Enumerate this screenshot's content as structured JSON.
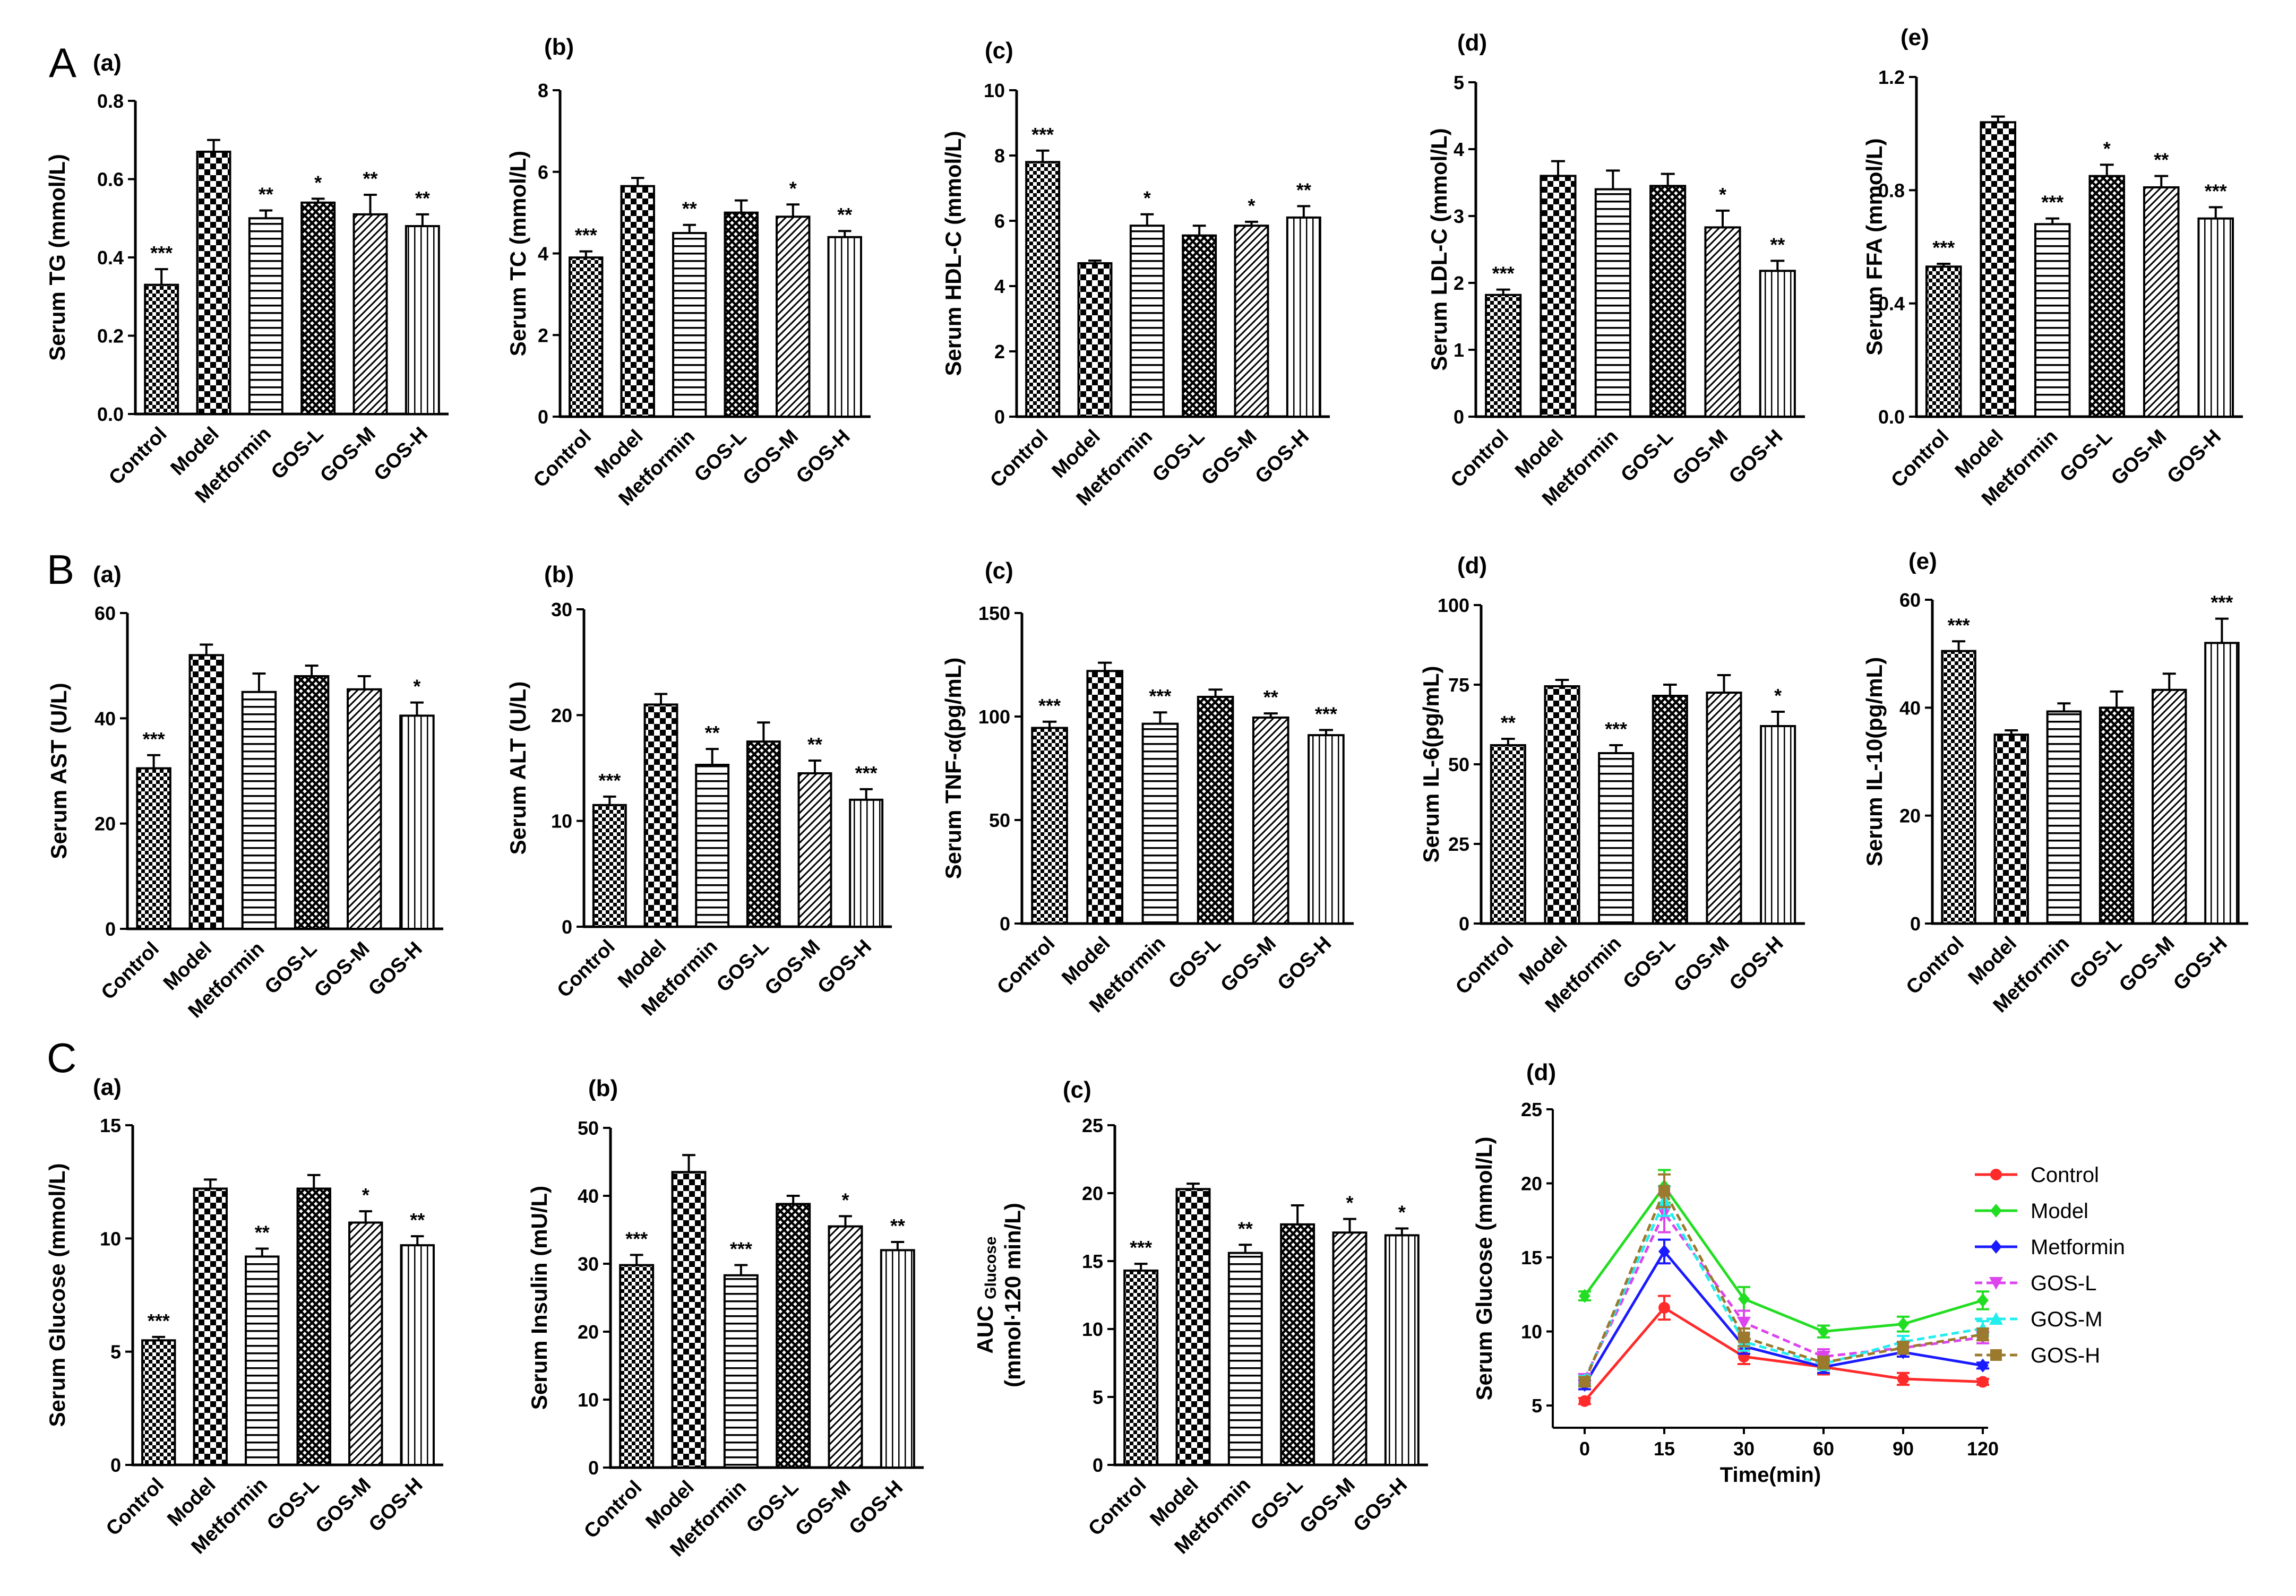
{
  "figure_panels": {
    "A": "A",
    "B": "B",
    "C": "C"
  },
  "group_labels": [
    "Control",
    "Model",
    "Metformin",
    "GOS-L",
    "GOS-M",
    "GOS-H"
  ],
  "patterns": [
    "checker-small",
    "checker-large",
    "horizontal",
    "diamond",
    "diagonal",
    "vertical"
  ],
  "colors": {
    "bar_fill": "#ffffff",
    "ink": "#000000",
    "control": "#ff2a2a",
    "model": "#22dd22",
    "metformin": "#1a1aff",
    "gos_l": "#dd44ee",
    "gos_m": "#22eeee",
    "gos_h": "#9b7a2e"
  },
  "chart_data": [
    {
      "id": "A-a",
      "type": "bar",
      "sub_label": "(a)",
      "ylabel": "Serum TG (mmol/L)",
      "ylim": [
        0,
        0.8
      ],
      "ticks": [
        "0.0",
        "0.2",
        "0.4",
        "0.6",
        "0.8"
      ],
      "tick_values": [
        0,
        0.2,
        0.4,
        0.6,
        0.8
      ],
      "categories": [
        "Control",
        "Model",
        "Metformin",
        "GOS-L",
        "GOS-M",
        "GOS-H"
      ],
      "values": [
        0.33,
        0.67,
        0.5,
        0.54,
        0.51,
        0.48
      ],
      "errors": [
        0.04,
        0.03,
        0.02,
        0.01,
        0.05,
        0.03
      ],
      "significance": [
        "***",
        "",
        "**",
        "*",
        "**",
        "**"
      ]
    },
    {
      "id": "A-b",
      "type": "bar",
      "sub_label": "(b)",
      "ylabel": "Serum TC (mmol/L)",
      "ylim": [
        0,
        8
      ],
      "ticks": [
        "0",
        "2",
        "4",
        "6",
        "8"
      ],
      "tick_values": [
        0,
        2,
        4,
        6,
        8
      ],
      "categories": [
        "Control",
        "Model",
        "Metformin",
        "GOS-L",
        "GOS-M",
        "GOS-H"
      ],
      "values": [
        3.9,
        5.65,
        4.5,
        5.0,
        4.9,
        4.4
      ],
      "errors": [
        0.15,
        0.2,
        0.2,
        0.3,
        0.3,
        0.15
      ],
      "significance": [
        "***",
        "",
        "**",
        "",
        "*",
        "**"
      ]
    },
    {
      "id": "A-c",
      "type": "bar",
      "sub_label": "(c)",
      "ylabel": "Serum HDL-C (mmol/L)",
      "ylim": [
        0,
        10
      ],
      "ticks": [
        "0",
        "2",
        "4",
        "6",
        "8",
        "10"
      ],
      "tick_values": [
        0,
        2,
        4,
        6,
        8,
        10
      ],
      "categories": [
        "Control",
        "Model",
        "Metformin",
        "GOS-L",
        "GOS-M",
        "GOS-H"
      ],
      "values": [
        7.8,
        4.7,
        5.85,
        5.55,
        5.85,
        6.1
      ],
      "errors": [
        0.35,
        0.08,
        0.35,
        0.3,
        0.12,
        0.35
      ],
      "significance": [
        "***",
        "",
        "*",
        "",
        "*",
        "**"
      ]
    },
    {
      "id": "A-d",
      "type": "bar",
      "sub_label": "(d)",
      "ylabel": "Serum LDL-C (mmol/L)",
      "ylim": [
        0,
        5
      ],
      "ticks": [
        "0",
        "1",
        "2",
        "3",
        "4",
        "5"
      ],
      "tick_values": [
        0,
        1,
        2,
        3,
        4,
        5
      ],
      "categories": [
        "Control",
        "Model",
        "Metformin",
        "GOS-L",
        "GOS-M",
        "GOS-H"
      ],
      "values": [
        1.82,
        3.6,
        3.4,
        3.45,
        2.83,
        2.18
      ],
      "errors": [
        0.08,
        0.22,
        0.28,
        0.18,
        0.25,
        0.15
      ],
      "significance": [
        "***",
        "",
        "",
        "",
        "*",
        "**"
      ]
    },
    {
      "id": "A-e",
      "type": "bar",
      "sub_label": "(e)",
      "ylabel": "Serum FFA (mmol/L)",
      "ylim": [
        0,
        1.2
      ],
      "ticks": [
        "0.0",
        "0.4",
        "0.8",
        "1.2"
      ],
      "tick_values": [
        0,
        0.4,
        0.8,
        1.2
      ],
      "categories": [
        "Control",
        "Model",
        "Metformin",
        "GOS-L",
        "GOS-M",
        "GOS-H"
      ],
      "values": [
        0.53,
        1.04,
        0.68,
        0.85,
        0.81,
        0.7
      ],
      "errors": [
        0.01,
        0.02,
        0.02,
        0.04,
        0.04,
        0.04
      ],
      "significance": [
        "***",
        "",
        "***",
        "*",
        "**",
        "***"
      ]
    },
    {
      "id": "B-a",
      "type": "bar",
      "sub_label": "(a)",
      "ylabel": "Serum AST (U/L)",
      "ylim": [
        0,
        60
      ],
      "ticks": [
        "0",
        "20",
        "40",
        "60"
      ],
      "tick_values": [
        0,
        20,
        40,
        60
      ],
      "categories": [
        "Control",
        "Model",
        "Metformin",
        "GOS-L",
        "GOS-M",
        "GOS-H"
      ],
      "values": [
        30.5,
        52,
        45,
        48,
        45.5,
        40.5
      ],
      "errors": [
        2.5,
        2,
        3.5,
        2,
        2.5,
        2.5
      ],
      "significance": [
        "***",
        "",
        "",
        "",
        "",
        "*"
      ]
    },
    {
      "id": "B-b",
      "type": "bar",
      "sub_label": "(b)",
      "ylabel": "Serum ALT (U/L)",
      "ylim": [
        0,
        30
      ],
      "ticks": [
        "0",
        "10",
        "20",
        "30"
      ],
      "tick_values": [
        0,
        10,
        20,
        30
      ],
      "categories": [
        "Control",
        "Model",
        "Metformin",
        "GOS-L",
        "GOS-M",
        "GOS-H"
      ],
      "values": [
        11.5,
        21,
        15.3,
        17.5,
        14.5,
        12
      ],
      "errors": [
        0.8,
        1,
        1.5,
        1.8,
        1.2,
        1
      ],
      "significance": [
        "***",
        "",
        "**",
        "",
        "**",
        "***"
      ]
    },
    {
      "id": "B-c",
      "type": "bar",
      "sub_label": "(c)",
      "ylabel": "Serum TNF-α(pg/mL)",
      "ylim": [
        0,
        150
      ],
      "ticks": [
        "0",
        "50",
        "100",
        "150"
      ],
      "tick_values": [
        0,
        50,
        100,
        150
      ],
      "categories": [
        "Control",
        "Model",
        "Metformin",
        "GOS-L",
        "GOS-M",
        "GOS-H"
      ],
      "values": [
        94.5,
        122,
        96.5,
        109.5,
        99.5,
        91
      ],
      "errors": [
        3,
        4,
        5.5,
        3.5,
        2,
        2.5
      ],
      "significance": [
        "***",
        "",
        "***",
        "",
        "**",
        "***"
      ]
    },
    {
      "id": "B-d",
      "type": "bar",
      "sub_label": "(d)",
      "ylabel": "Serum IL-6(pg/mL)",
      "ylim": [
        0,
        100
      ],
      "ticks": [
        "0",
        "25",
        "50",
        "75",
        "100"
      ],
      "tick_values": [
        0,
        25,
        50,
        75,
        100
      ],
      "categories": [
        "Control",
        "Model",
        "Metformin",
        "GOS-L",
        "GOS-M",
        "GOS-H"
      ],
      "values": [
        56,
        74.5,
        53.5,
        71.5,
        72.5,
        62
      ],
      "errors": [
        2,
        2,
        2.5,
        3.5,
        5.5,
        4.5
      ],
      "significance": [
        "**",
        "",
        "***",
        "",
        "",
        "*"
      ]
    },
    {
      "id": "B-e",
      "type": "bar",
      "sub_label": "(e)",
      "ylabel": "Serum IL-10(pg/mL)",
      "ylim": [
        0,
        60
      ],
      "ticks": [
        "0",
        "20",
        "40",
        "60"
      ],
      "tick_values": [
        0,
        20,
        40,
        60
      ],
      "categories": [
        "Control",
        "Model",
        "Metformin",
        "GOS-L",
        "GOS-M",
        "GOS-H"
      ],
      "values": [
        50.5,
        35,
        39.3,
        40,
        43.3,
        52
      ],
      "errors": [
        1.8,
        0.8,
        1.5,
        3,
        3,
        4.5
      ],
      "significance": [
        "***",
        "",
        "",
        "",
        "",
        "***"
      ]
    },
    {
      "id": "C-a",
      "type": "bar",
      "sub_label": "(a)",
      "ylabel": "Serum Glucose (mmol/L)",
      "ylim": [
        0,
        15
      ],
      "ticks": [
        "0",
        "5",
        "10",
        "15"
      ],
      "tick_values": [
        0,
        5,
        10,
        15
      ],
      "categories": [
        "Control",
        "Model",
        "Metformin",
        "GOS-L",
        "GOS-M",
        "GOS-H"
      ],
      "values": [
        5.5,
        12.2,
        9.2,
        12.2,
        10.7,
        9.7
      ],
      "errors": [
        0.15,
        0.4,
        0.35,
        0.6,
        0.5,
        0.4
      ],
      "significance": [
        "***",
        "",
        "**",
        "",
        "*",
        "**"
      ]
    },
    {
      "id": "C-b",
      "type": "bar",
      "sub_label": "(b)",
      "ylabel": "Serum Insulin (mU/L)",
      "ylim": [
        0,
        50
      ],
      "ticks": [
        "0",
        "10",
        "20",
        "30",
        "40",
        "50"
      ],
      "tick_values": [
        0,
        10,
        20,
        30,
        40,
        50
      ],
      "categories": [
        "Control",
        "Model",
        "Metformin",
        "GOS-L",
        "GOS-M",
        "GOS-H"
      ],
      "values": [
        29.8,
        43.5,
        28.3,
        38.8,
        35.5,
        32
      ],
      "errors": [
        1.5,
        2.5,
        1.5,
        1.2,
        1.5,
        1.2
      ],
      "significance": [
        "***",
        "",
        "***",
        "",
        "*",
        "**"
      ]
    },
    {
      "id": "C-c",
      "type": "bar",
      "sub_label": "(c)",
      "ylabel": "(mmol·120 min/L)",
      "ylabel_top": "AUC",
      "ylabel_sub": "Glucose",
      "ylim": [
        0,
        25
      ],
      "ticks": [
        "0",
        "5",
        "10",
        "15",
        "20",
        "25"
      ],
      "tick_values": [
        0,
        5,
        10,
        15,
        20,
        25
      ],
      "categories": [
        "Control",
        "Model",
        "Metformin",
        "GOS-L",
        "GOS-M",
        "GOS-H"
      ],
      "values": [
        14.3,
        20.3,
        15.6,
        17.7,
        17.1,
        16.9
      ],
      "errors": [
        0.5,
        0.4,
        0.6,
        1.4,
        1.0,
        0.5
      ],
      "significance": [
        "***",
        "",
        "**",
        "",
        "*",
        "*"
      ]
    },
    {
      "id": "C-d",
      "type": "line",
      "sub_label": "(d)",
      "ylabel": "Serum Glucose (mmol/L)",
      "xlabel": "Time(min)",
      "ylim": [
        3.5,
        25
      ],
      "ticks": [
        "5",
        "10",
        "15",
        "20",
        "25"
      ],
      "tick_values": [
        5,
        10,
        15,
        20,
        25
      ],
      "x": [
        "0",
        "15",
        "30",
        "60",
        "90",
        "120"
      ],
      "series": [
        {
          "name": "Control",
          "color": "#ff2a2a",
          "marker": "circle",
          "values": [
            5.3,
            11.6,
            8.3,
            7.6,
            6.8,
            6.6
          ],
          "errors": [
            0.2,
            0.8,
            0.5,
            0.5,
            0.4,
            0.2
          ]
        },
        {
          "name": "Model",
          "color": "#22dd22",
          "marker": "diamond",
          "values": [
            12.4,
            19.8,
            12.2,
            10.0,
            10.5,
            12.1
          ],
          "errors": [
            0.3,
            1.1,
            0.8,
            0.4,
            0.5,
            0.6
          ]
        },
        {
          "name": "Metformin",
          "color": "#1a1aff",
          "marker": "diamond",
          "values": [
            6.4,
            15.4,
            9.0,
            7.6,
            8.6,
            7.7
          ],
          "errors": [
            0.3,
            0.8,
            0.5,
            0.4,
            0.3,
            0.2
          ]
        },
        {
          "name": "GOS-L",
          "color": "#dd44ee",
          "marker": "tri-down",
          "values": [
            6.8,
            18.0,
            10.6,
            8.3,
            8.9,
            9.6
          ],
          "errors": [
            0.3,
            1.3,
            0.8,
            0.5,
            0.4,
            0.4
          ]
        },
        {
          "name": "GOS-M",
          "color": "#22eeee",
          "marker": "tri-up",
          "values": [
            6.7,
            18.8,
            9.3,
            7.8,
            9.3,
            10.2
          ],
          "errors": [
            0.3,
            1.0,
            0.6,
            0.4,
            0.4,
            0.5
          ]
        },
        {
          "name": "GOS-H",
          "color": "#9b7a2e",
          "marker": "square",
          "values": [
            6.6,
            19.5,
            9.6,
            7.9,
            8.9,
            9.8
          ],
          "errors": [
            0.3,
            1.1,
            0.6,
            0.4,
            0.4,
            0.4
          ]
        }
      ]
    }
  ]
}
